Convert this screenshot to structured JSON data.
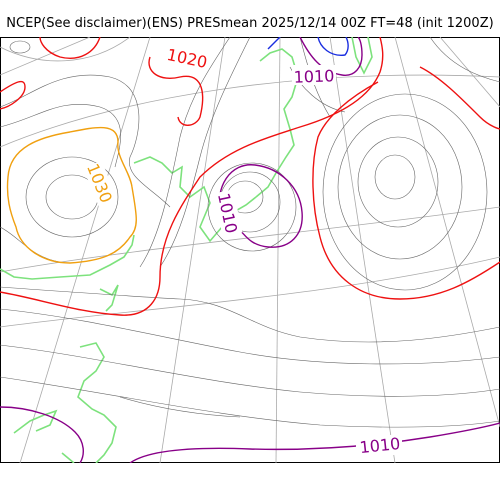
{
  "title": "NCEP(See disclaimer)(ENS) PRESmean 2025/12/14 00Z FT=48 (init 1200Z)",
  "colors": {
    "background": "#ffffff",
    "isobar_thin": "#666666",
    "isobar_1020": "#ee1111",
    "isobar_1030": "#f0a010",
    "isobar_1010": "#880088",
    "isobar_low": "#1a2ee0",
    "coastline": "#7de27d",
    "graticule": "#aaaaaa"
  },
  "labels": {
    "label_1020": "1020",
    "label_1030": "1030",
    "label_1010_top": "1010",
    "label_1010_center": "1010",
    "label_1010_bottom": "1010"
  }
}
